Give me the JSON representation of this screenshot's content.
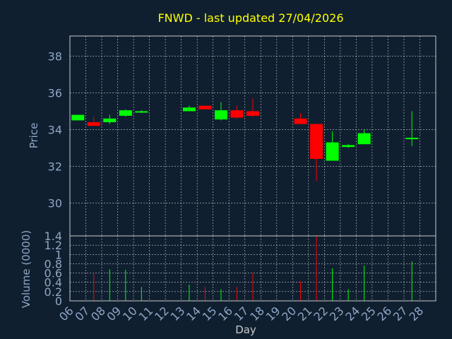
{
  "theme": {
    "background": "#0f1f30",
    "frame": "#c8c8c8",
    "grid": "#c8c8c8",
    "title_color": "#ffff00",
    "axis_text": "#8fa6c3",
    "up_color": "#00ff00",
    "down_color": "#ff0000"
  },
  "chart_data": [
    {
      "type": "candlestick",
      "title": "FNWD - last updated 27/04/2026",
      "ylabel": "Price",
      "ylim": [
        28.2,
        39.1
      ],
      "yticks": [
        30,
        32,
        34,
        36,
        38
      ],
      "grid": true,
      "candles": [
        {
          "day": "06",
          "open": 34.5,
          "close": 34.8,
          "high": 34.8,
          "low": 34.5
        },
        {
          "day": "07",
          "open": 34.4,
          "close": 34.2,
          "high": 34.7,
          "low": 34.2
        },
        {
          "day": "08",
          "open": 34.4,
          "close": 34.6,
          "high": 34.8,
          "low": 34.3
        },
        {
          "day": "09",
          "open": 34.75,
          "close": 35.05,
          "high": 35.1,
          "low": 34.7
        },
        {
          "day": "10",
          "open": 34.95,
          "close": 35.0,
          "high": 35.05,
          "low": 34.9
        },
        {
          "day": "13",
          "open": 35.0,
          "close": 35.2,
          "high": 35.3,
          "low": 35.0
        },
        {
          "day": "14",
          "open": 35.3,
          "close": 35.1,
          "high": 35.3,
          "low": 35.1
        },
        {
          "day": "15",
          "open": 34.55,
          "close": 35.05,
          "high": 35.5,
          "low": 34.5
        },
        {
          "day": "16",
          "open": 35.05,
          "close": 34.65,
          "high": 35.3,
          "low": 34.6
        },
        {
          "day": "17",
          "open": 35.0,
          "close": 34.75,
          "high": 35.7,
          "low": 34.7
        },
        {
          "day": "20",
          "open": 34.6,
          "close": 34.3,
          "high": 34.9,
          "low": 34.3
        },
        {
          "day": "21",
          "open": 34.3,
          "close": 32.4,
          "high": 34.3,
          "low": 31.2
        },
        {
          "day": "22",
          "open": 32.3,
          "close": 33.3,
          "high": 33.9,
          "low": 32.3
        },
        {
          "day": "23",
          "open": 33.05,
          "close": 33.15,
          "high": 33.2,
          "low": 33.0
        },
        {
          "day": "24",
          "open": 33.2,
          "close": 33.8,
          "high": 34.0,
          "low": 33.2
        },
        {
          "day": "27",
          "open": 33.5,
          "close": 33.55,
          "high": 35.0,
          "low": 33.1
        }
      ]
    },
    {
      "type": "bar",
      "ylabel": "Volume (0000)",
      "xlabel": "Day",
      "ylim": [
        0,
        1.4
      ],
      "yticks": [
        "0",
        "0.2",
        "0.4",
        "0.6",
        "0.8",
        "1",
        "1.2",
        "1.4"
      ],
      "xticks": [
        "06",
        "07",
        "08",
        "09",
        "10",
        "11",
        "12",
        "13",
        "14",
        "15",
        "16",
        "17",
        "18",
        "19",
        "20",
        "21",
        "22",
        "23",
        "24",
        "25",
        "26",
        "27",
        "28"
      ],
      "grid": true,
      "bars": [
        {
          "day": "07",
          "value": 0.6,
          "dir": "down"
        },
        {
          "day": "08",
          "value": 0.68,
          "dir": "up"
        },
        {
          "day": "09",
          "value": 0.67,
          "dir": "up"
        },
        {
          "day": "10",
          "value": 0.3,
          "dir": "up"
        },
        {
          "day": "13",
          "value": 0.35,
          "dir": "up"
        },
        {
          "day": "14",
          "value": 0.3,
          "dir": "down"
        },
        {
          "day": "15",
          "value": 0.25,
          "dir": "up"
        },
        {
          "day": "16",
          "value": 0.3,
          "dir": "down"
        },
        {
          "day": "17",
          "value": 0.6,
          "dir": "down"
        },
        {
          "day": "20",
          "value": 0.42,
          "dir": "down"
        },
        {
          "day": "21",
          "value": 1.4,
          "dir": "down"
        },
        {
          "day": "22",
          "value": 0.7,
          "dir": "up"
        },
        {
          "day": "23",
          "value": 0.25,
          "dir": "up"
        },
        {
          "day": "24",
          "value": 0.76,
          "dir": "up"
        },
        {
          "day": "27",
          "value": 0.85,
          "dir": "up"
        }
      ]
    }
  ]
}
